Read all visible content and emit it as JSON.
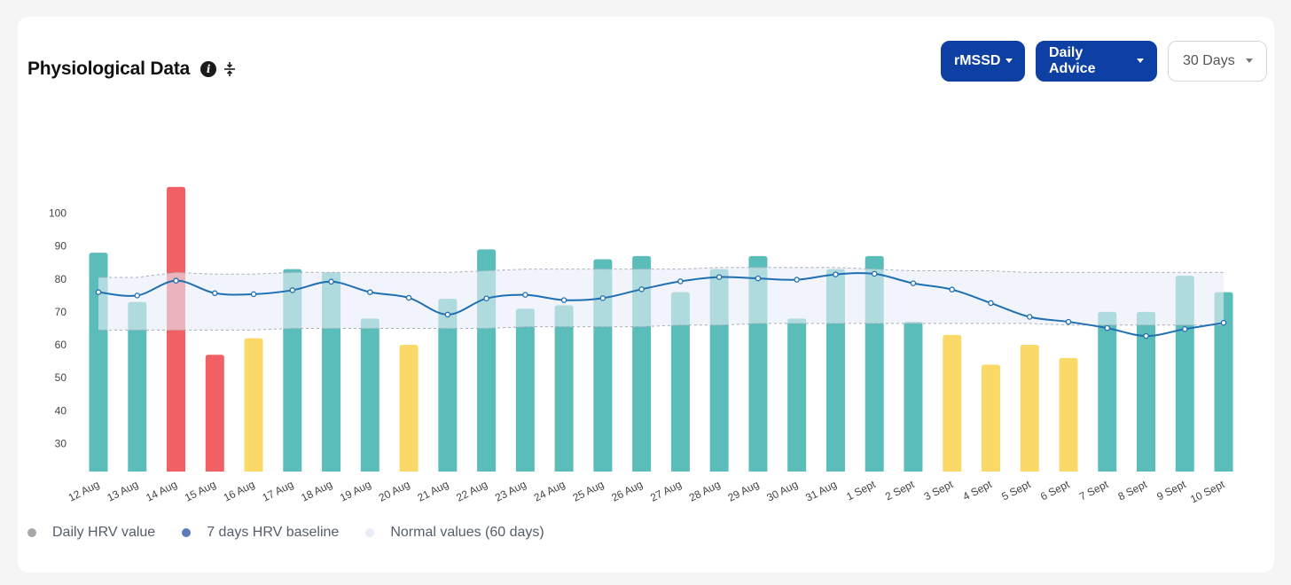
{
  "header": {
    "title": "Physiological Data",
    "info_icon": "info-icon",
    "collapse_icon": "compress-vertical-icon"
  },
  "controls": {
    "metric_label": "rMSSD",
    "advice_label": "Daily Advice",
    "range_label": "30 Days"
  },
  "colors": {
    "green": "#5bbdba",
    "yellow": "#fbd968",
    "red": "#f06064",
    "baseline": "#1f6fb2",
    "band": "#e8ecf6",
    "primary_button": "#0e3fa3"
  },
  "legend": [
    {
      "label": "Daily HRV value",
      "color": "#a8a8a8"
    },
    {
      "label": "7 days HRV baseline",
      "color": "#5b7bbd"
    },
    {
      "label": "Normal values (60 days)",
      "color": "#e8ecf6"
    }
  ],
  "chart_data": {
    "type": "bar",
    "categories": [
      "12 Aug",
      "13 Aug",
      "14 Aug",
      "15 Aug",
      "16 Aug",
      "17 Aug",
      "18 Aug",
      "19 Aug",
      "20 Aug",
      "21 Aug",
      "22 Aug",
      "23 Aug",
      "24 Aug",
      "25 Aug",
      "26 Aug",
      "27 Aug",
      "28 Aug",
      "29 Aug",
      "30 Aug",
      "31 Aug",
      "1 Sept",
      "2 Sept",
      "3 Sept",
      "4 Sept",
      "5 Sept",
      "6 Sept",
      "7 Sept",
      "8 Sept",
      "9 Sept",
      "10 Sept"
    ],
    "series": [
      {
        "name": "Daily HRV value",
        "type": "bar",
        "values": [
          88,
          73,
          108,
          57,
          62,
          83,
          82,
          68,
          60,
          74,
          89,
          71,
          72,
          86,
          87,
          76,
          83,
          87,
          68,
          83,
          87,
          67,
          63,
          54,
          60,
          56,
          70,
          70,
          81,
          76
        ],
        "status": [
          "green",
          "green",
          "red",
          "red",
          "yellow",
          "green",
          "green",
          "green",
          "yellow",
          "green",
          "green",
          "green",
          "green",
          "green",
          "green",
          "green",
          "green",
          "green",
          "green",
          "green",
          "green",
          "green",
          "yellow",
          "yellow",
          "yellow",
          "yellow",
          "green",
          "green",
          "green",
          "green"
        ]
      },
      {
        "name": "7 days HRV baseline",
        "type": "line",
        "values": [
          76,
          75,
          79.5,
          75.7,
          75.4,
          76.6,
          79.2,
          76,
          74.3,
          69.2,
          74.1,
          75.2,
          73.6,
          74.2,
          76.9,
          79.3,
          80.6,
          80.2,
          79.8,
          81.4,
          81.6,
          78.7,
          76.8,
          72.7,
          68.5,
          67,
          65.1,
          62.7,
          64.8,
          66.7
        ]
      },
      {
        "name": "Normal values (60 days)",
        "type": "band",
        "upper": [
          80.5,
          80.5,
          82,
          81.5,
          81.5,
          82,
          82,
          82,
          82,
          82,
          82.5,
          83,
          83,
          83,
          83,
          83,
          83.5,
          83.5,
          83.5,
          83.5,
          83,
          82.5,
          82.5,
          82.5,
          82,
          82,
          82,
          82,
          82,
          82
        ],
        "lower": [
          64.5,
          64.5,
          64.5,
          64.5,
          64.5,
          65,
          65,
          65,
          65,
          65,
          65,
          65.5,
          65.5,
          65.5,
          65.5,
          66,
          66,
          66.5,
          66.5,
          66.5,
          66.5,
          66.5,
          66.5,
          66.5,
          66.5,
          66,
          66,
          66,
          66,
          66
        ]
      }
    ],
    "yticks": [
      30,
      40,
      50,
      60,
      70,
      80,
      90,
      100
    ],
    "ylim": [
      21.5,
      112
    ],
    "grid": false,
    "legend_position": "bottom-left"
  }
}
